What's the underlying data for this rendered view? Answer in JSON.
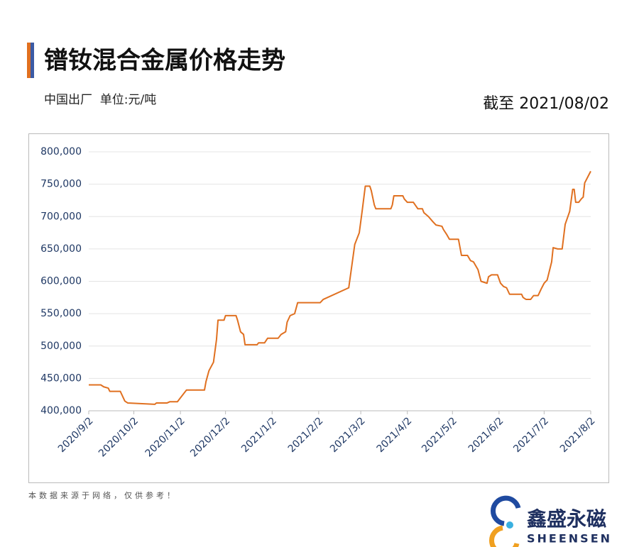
{
  "header": {
    "title": "镨钕混合金属价格走势",
    "subtitle": "中国出厂  单位:元/吨",
    "date_note": "截至 2021/08/02"
  },
  "chart_data": {
    "type": "line",
    "color": "#e07020",
    "grid": true,
    "x": [
      "2020-09-02",
      "2020-09-10",
      "2020-09-12",
      "2020-09-15",
      "2020-09-16",
      "2020-09-23",
      "2020-09-26",
      "2020-09-28",
      "2020-10-16",
      "2020-10-17",
      "2020-10-24",
      "2020-10-26",
      "2020-10-31",
      "2020-11-02",
      "2020-11-06",
      "2020-11-18",
      "2020-11-19",
      "2020-11-21",
      "2020-11-24",
      "2020-11-26",
      "2020-11-27",
      "2020-12-01",
      "2020-12-02",
      "2020-12-09",
      "2020-12-10",
      "2020-12-12",
      "2020-12-14",
      "2020-12-15",
      "2020-12-23",
      "2020-12-24",
      "2020-12-28",
      "2020-12-30",
      "2021-01-06",
      "2021-01-08",
      "2021-01-11",
      "2021-01-12",
      "2021-01-14",
      "2021-01-17",
      "2021-01-19",
      "2021-02-03",
      "2021-02-05",
      "2021-02-22",
      "2021-02-26",
      "2021-03-01",
      "2021-03-03",
      "2021-03-05",
      "2021-03-08",
      "2021-03-09",
      "2021-03-11",
      "2021-03-12",
      "2021-03-22",
      "2021-03-23",
      "2021-03-24",
      "2021-03-30",
      "2021-03-31",
      "2021-04-02",
      "2021-04-06",
      "2021-04-09",
      "2021-04-12",
      "2021-04-13",
      "2021-04-16",
      "2021-04-19",
      "2021-04-21",
      "2021-04-25",
      "2021-04-26",
      "2021-04-28",
      "2021-04-30",
      "2021-05-06",
      "2021-05-08",
      "2021-05-12",
      "2021-05-14",
      "2021-05-16",
      "2021-05-19",
      "2021-05-21",
      "2021-05-25",
      "2021-05-26",
      "2021-05-28",
      "2021-06-01",
      "2021-06-03",
      "2021-06-05",
      "2021-06-07",
      "2021-06-09",
      "2021-06-17",
      "2021-06-18",
      "2021-06-20",
      "2021-06-23",
      "2021-06-25",
      "2021-06-28",
      "2021-06-30",
      "2021-07-02",
      "2021-07-04",
      "2021-07-07",
      "2021-07-08",
      "2021-07-11",
      "2021-07-14",
      "2021-07-16",
      "2021-07-19",
      "2021-07-21",
      "2021-07-22",
      "2021-07-23",
      "2021-07-25",
      "2021-07-27",
      "2021-07-28",
      "2021-07-29",
      "2021-08-02"
    ],
    "values": [
      440000,
      440000,
      437000,
      435000,
      430000,
      430000,
      415000,
      412000,
      410000,
      412000,
      412000,
      414000,
      414000,
      420000,
      432000,
      432000,
      445000,
      462000,
      475000,
      510000,
      540000,
      540000,
      547000,
      547000,
      540000,
      522000,
      518000,
      502000,
      502000,
      505000,
      505000,
      512000,
      512000,
      518000,
      522000,
      537000,
      547000,
      550000,
      567000,
      567000,
      572000,
      590000,
      657000,
      675000,
      710000,
      747000,
      747000,
      740000,
      718000,
      712000,
      712000,
      718000,
      732000,
      732000,
      727000,
      722000,
      722000,
      712000,
      712000,
      706000,
      700000,
      692000,
      687000,
      685000,
      680000,
      673000,
      665000,
      665000,
      640000,
      640000,
      632000,
      630000,
      618000,
      600000,
      597000,
      607000,
      610000,
      610000,
      597000,
      592000,
      590000,
      580000,
      580000,
      575000,
      572000,
      572000,
      578000,
      578000,
      588000,
      597000,
      602000,
      630000,
      652000,
      650000,
      650000,
      688000,
      708000,
      742000,
      742000,
      722000,
      722000,
      728000,
      730000,
      752000,
      770000
    ],
    "xlim": [
      "2020-09-02",
      "2021-08-02"
    ],
    "xticks": [
      {
        "value": "2020-09-02",
        "label": "2020/9/2"
      },
      {
        "value": "2020-10-02",
        "label": "2020/10/2"
      },
      {
        "value": "2020-11-02",
        "label": "2020/11/2"
      },
      {
        "value": "2020-12-02",
        "label": "2020/12/2"
      },
      {
        "value": "2021-01-02",
        "label": "2021/1/2"
      },
      {
        "value": "2021-02-02",
        "label": "2021/2/2"
      },
      {
        "value": "2021-03-02",
        "label": "2021/3/2"
      },
      {
        "value": "2021-04-02",
        "label": "2021/4/2"
      },
      {
        "value": "2021-05-02",
        "label": "2021/5/2"
      },
      {
        "value": "2021-06-02",
        "label": "2021/6/2"
      },
      {
        "value": "2021-07-02",
        "label": "2021/7/2"
      },
      {
        "value": "2021-08-02",
        "label": "2021/8/2"
      }
    ],
    "ylim": [
      400000,
      800000
    ],
    "yticks": [
      {
        "value": 400000,
        "label": "400,000"
      },
      {
        "value": 450000,
        "label": "450,000"
      },
      {
        "value": 500000,
        "label": "500,000"
      },
      {
        "value": 550000,
        "label": "550,000"
      },
      {
        "value": 600000,
        "label": "600,000"
      },
      {
        "value": 650000,
        "label": "650,000"
      },
      {
        "value": 700000,
        "label": "700,000"
      },
      {
        "value": 750000,
        "label": "750,000"
      },
      {
        "value": 800000,
        "label": "800,000"
      }
    ]
  },
  "footer": {
    "note": "本数据来源于网络，仅供参考！",
    "brand_name": "鑫盛永磁",
    "brand_en": "SHEENSEN"
  }
}
